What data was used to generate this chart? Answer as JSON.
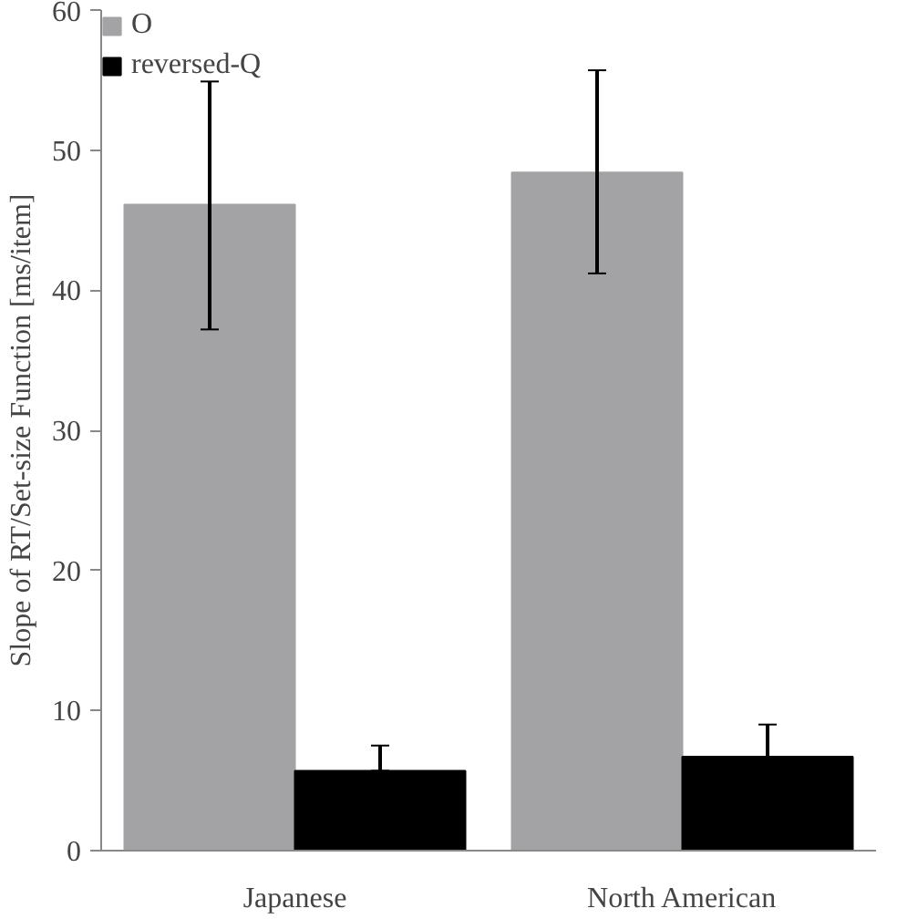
{
  "chart_data": {
    "type": "bar",
    "ylabel": "Slope of RT/Set-size Function [ms/item]",
    "categories": [
      "Japanese",
      "North American"
    ],
    "series": [
      {
        "name": "O",
        "color": "#a3a3a6",
        "values": [
          46.1,
          48.4
        ],
        "errors": [
          [
            37.2,
            54.9
          ],
          [
            41.2,
            55.7
          ]
        ]
      },
      {
        "name": "reversed-Q",
        "color": "#000000",
        "values": [
          5.7,
          6.7
        ],
        "errors": [
          [
            5.7,
            7.5
          ],
          [
            6.7,
            9.0
          ]
        ]
      }
    ],
    "ylim": [
      0,
      60
    ],
    "yticks": [
      0,
      10,
      20,
      30,
      40,
      50,
      60
    ],
    "grid": false,
    "legend": "top left"
  }
}
